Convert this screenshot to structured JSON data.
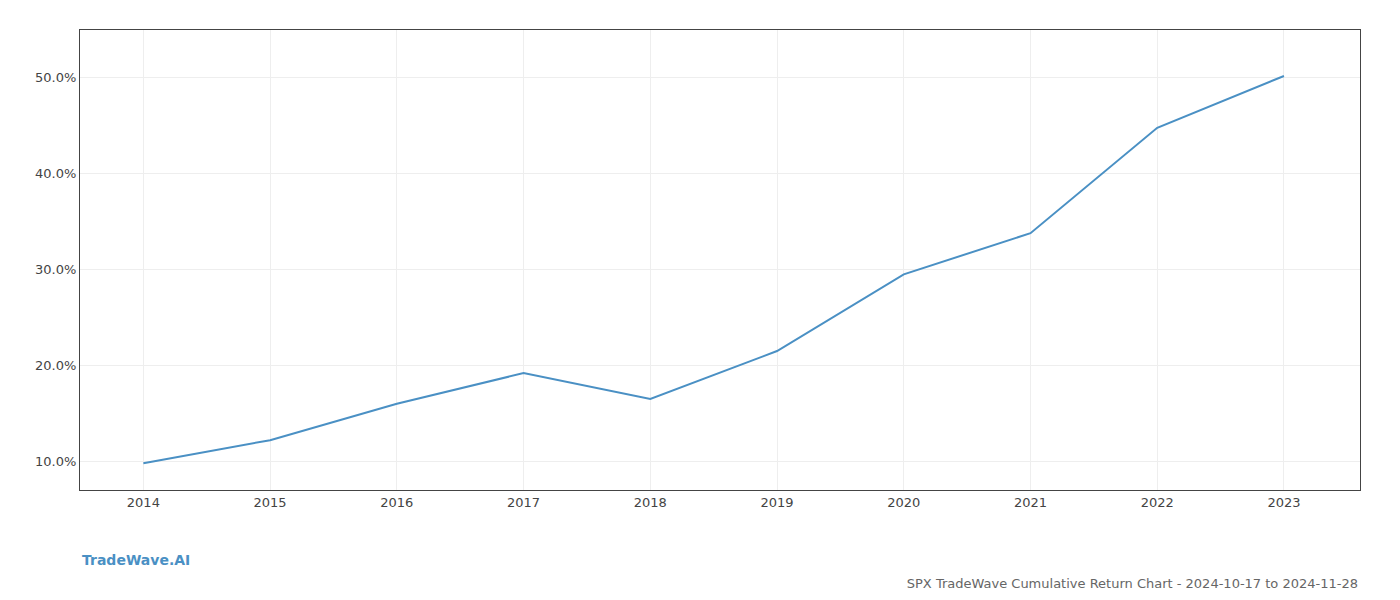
{
  "chart_data": {
    "type": "line",
    "title": "SPX TradeWave Cumulative Return Chart - 2024-10-17 to 2024-11-28",
    "annotations": [
      {
        "text": "TradeWave.AI"
      }
    ],
    "x": [
      2014,
      2015,
      2016,
      2017,
      2018,
      2019,
      2020,
      2021,
      2022,
      2023
    ],
    "values": [
      9.8,
      12.2,
      16.0,
      19.2,
      16.5,
      21.5,
      29.5,
      33.8,
      44.8,
      50.2
    ],
    "color": "#4a90c4",
    "xlim": [
      2013.5,
      2023.6
    ],
    "xticks": [
      2014,
      2015,
      2016,
      2017,
      2018,
      2019,
      2020,
      2021,
      2022,
      2023
    ],
    "ylim": [
      7.0,
      55.0
    ],
    "yticks": [
      {
        "value": 10.0,
        "label": "10.0%"
      },
      {
        "value": 20.0,
        "label": "20.0%"
      },
      {
        "value": 30.0,
        "label": "30.0%"
      },
      {
        "value": 40.0,
        "label": "40.0%"
      },
      {
        "value": 50.0,
        "label": "50.0%"
      }
    ],
    "grid": true
  }
}
